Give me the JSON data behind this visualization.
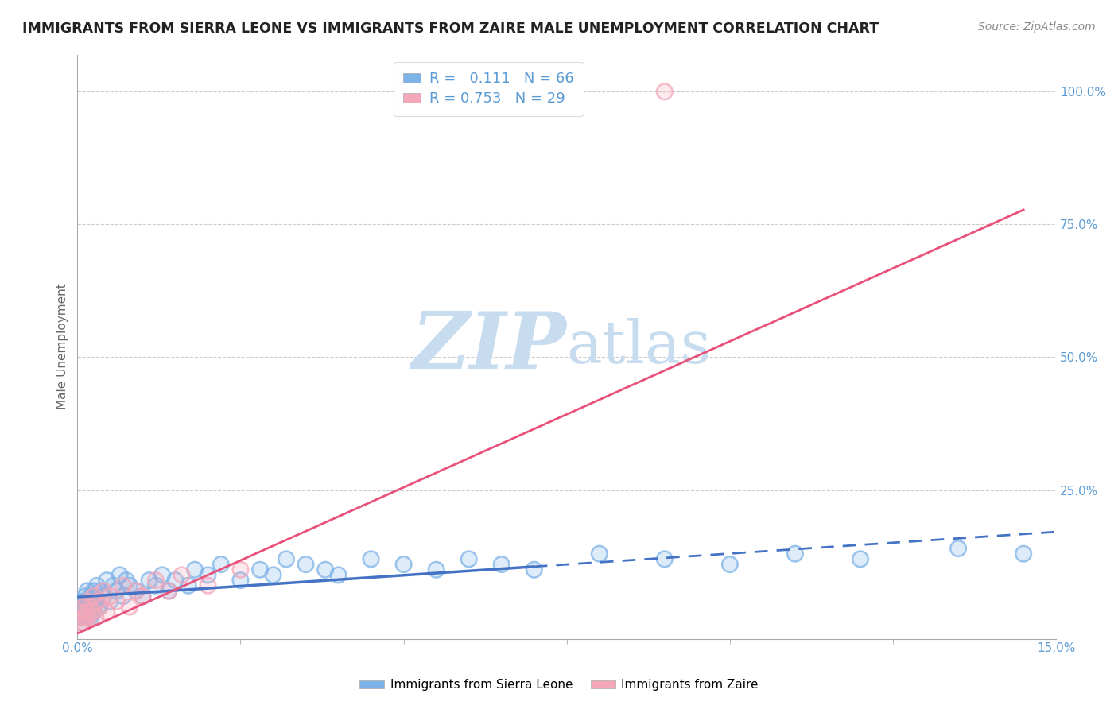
{
  "title": "IMMIGRANTS FROM SIERRA LEONE VS IMMIGRANTS FROM ZAIRE MALE UNEMPLOYMENT CORRELATION CHART",
  "source_text": "Source: ZipAtlas.com",
  "ylabel": "Male Unemployment",
  "xlim": [
    0.0,
    15.0
  ],
  "ylim": [
    -3.0,
    107.0
  ],
  "yticks": [
    0,
    25,
    50,
    75,
    100
  ],
  "ytick_labels": [
    "",
    "25.0%",
    "50.0%",
    "75.0%",
    "100.0%"
  ],
  "sierra_leone_color": "#7EB3E8",
  "zaire_color": "#F4A7B9",
  "sierra_leone_R": "0.111",
  "sierra_leone_N": "66",
  "zaire_R": "0.753",
  "zaire_N": "29",
  "legend_sierra_label": "Immigrants from Sierra Leone",
  "legend_zaire_label": "Immigrants from Zaire",
  "watermark_zip": "ZIP",
  "watermark_atlas": "atlas",
  "background_color": "#ffffff",
  "grid_color": "#cccccc",
  "axis_label_color": "#5B9BD5",
  "sierra_line_color": "#4472C4",
  "zaire_line_color": "#E8517A",
  "title_fontsize": 12.5,
  "source_fontsize": 10,
  "watermark_color": "#C8DCF0",
  "watermark_fontsize": 72,
  "sl_scatter_x": [
    0.05,
    0.07,
    0.08,
    0.09,
    0.1,
    0.1,
    0.11,
    0.12,
    0.13,
    0.14,
    0.15,
    0.15,
    0.16,
    0.17,
    0.18,
    0.2,
    0.2,
    0.22,
    0.23,
    0.25,
    0.25,
    0.28,
    0.3,
    0.3,
    0.32,
    0.35,
    0.4,
    0.45,
    0.5,
    0.55,
    0.6,
    0.65,
    0.7,
    0.75,
    0.8,
    0.9,
    1.0,
    1.1,
    1.2,
    1.3,
    1.4,
    1.5,
    1.7,
    1.8,
    2.0,
    2.2,
    2.5,
    2.8,
    3.0,
    3.2,
    3.5,
    3.8,
    4.0,
    4.5,
    5.0,
    5.5,
    6.0,
    6.5,
    7.0,
    8.0,
    9.0,
    10.0,
    11.0,
    12.0,
    13.5,
    14.5
  ],
  "sl_scatter_y": [
    1,
    2,
    0,
    3,
    1,
    4,
    2,
    5,
    3,
    1,
    2,
    6,
    4,
    3,
    2,
    5,
    1,
    4,
    3,
    6,
    2,
    5,
    4,
    7,
    3,
    6,
    5,
    8,
    4,
    7,
    6,
    9,
    5,
    8,
    7,
    6,
    5,
    8,
    7,
    9,
    6,
    8,
    7,
    10,
    9,
    11,
    8,
    10,
    9,
    12,
    11,
    10,
    9,
    12,
    11,
    10,
    12,
    11,
    10,
    13,
    12,
    11,
    13,
    12,
    14,
    13
  ],
  "z_scatter_x": [
    0.05,
    0.07,
    0.08,
    0.09,
    0.1,
    0.12,
    0.14,
    0.15,
    0.17,
    0.2,
    0.22,
    0.25,
    0.28,
    0.3,
    0.35,
    0.4,
    0.45,
    0.5,
    0.6,
    0.7,
    0.8,
    0.9,
    1.0,
    1.2,
    1.4,
    1.6,
    2.0,
    2.5,
    9.0
  ],
  "z_scatter_y": [
    0,
    1,
    2,
    0,
    3,
    1,
    2,
    4,
    1,
    3,
    2,
    5,
    1,
    4,
    3,
    6,
    2,
    5,
    4,
    7,
    3,
    6,
    5,
    8,
    6,
    9,
    7,
    10,
    100
  ]
}
